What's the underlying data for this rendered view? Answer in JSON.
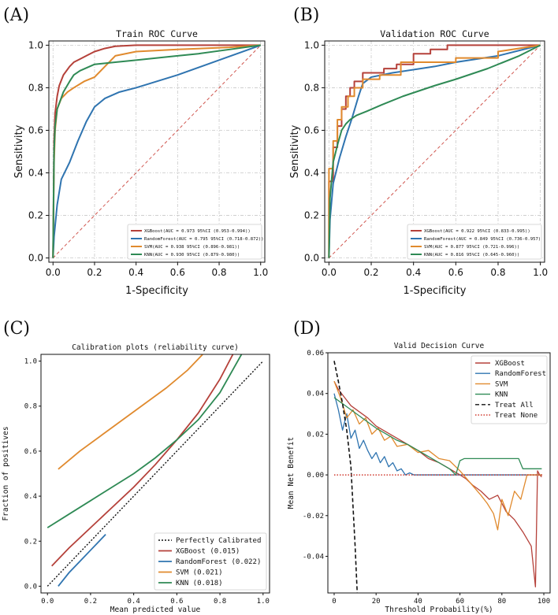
{
  "figure": {
    "panels": [
      {
        "id": "A",
        "letter": "(A)"
      },
      {
        "id": "B",
        "letter": "(B)"
      },
      {
        "id": "C",
        "letter": "(C)"
      },
      {
        "id": "D",
        "letter": "(D)"
      }
    ]
  },
  "colors": {
    "XGBoost": "#b5413a",
    "RandomForest": "#2f74b0",
    "SVM": "#e08a2e",
    "KNN": "#2f8a55",
    "diag": "#d0564f",
    "grid": "#c8c8c8",
    "treat_all": "#111111",
    "treat_none": "#d13a2f"
  },
  "chart_data": [
    {
      "panel": "A",
      "type": "line",
      "title": "Train ROC Curve",
      "xlabel": "1-Specificity",
      "ylabel": "Sensitivity",
      "xlim": [
        -0.02,
        1.02
      ],
      "ylim": [
        -0.02,
        1.02
      ],
      "xticks": [
        "0.0",
        "0.2",
        "0.4",
        "0.6",
        "0.8",
        "1.0"
      ],
      "yticks": [
        "0.0",
        "0.2",
        "0.4",
        "0.6",
        "0.8",
        "1.0"
      ],
      "grid": true,
      "legend_position": "bottom-right",
      "diagonal": true,
      "series": [
        {
          "name": "XGBoost",
          "legend": "XGBoost(AUC = 0.973 95%CI (0.953-0.994))",
          "x": [
            0,
            0.005,
            0.01,
            0.02,
            0.03,
            0.05,
            0.08,
            0.1,
            0.13,
            0.16,
            0.2,
            0.25,
            0.3,
            0.4,
            1.0
          ],
          "y": [
            0,
            0.55,
            0.68,
            0.76,
            0.81,
            0.86,
            0.9,
            0.92,
            0.935,
            0.95,
            0.97,
            0.985,
            0.995,
            1.0,
            1.0
          ]
        },
        {
          "name": "RandomForest",
          "legend": "RandomForest(AUC = 0.795 95%CI (0.718-0.872))",
          "x": [
            0,
            0.005,
            0.02,
            0.04,
            0.08,
            0.12,
            0.16,
            0.2,
            0.25,
            0.32,
            0.4,
            0.6,
            0.8,
            1.0
          ],
          "y": [
            0,
            0.1,
            0.25,
            0.37,
            0.45,
            0.55,
            0.64,
            0.71,
            0.75,
            0.78,
            0.8,
            0.86,
            0.93,
            1.0
          ]
        },
        {
          "name": "SVM",
          "legend": "SVM(AUC = 0.938 95%CI (0.896-0.981))",
          "x": [
            0,
            0.005,
            0.01,
            0.02,
            0.04,
            0.07,
            0.1,
            0.15,
            0.2,
            0.25,
            0.3,
            0.4,
            0.6,
            0.85,
            1.0
          ],
          "y": [
            0,
            0.45,
            0.6,
            0.7,
            0.75,
            0.78,
            0.8,
            0.83,
            0.85,
            0.9,
            0.95,
            0.97,
            0.98,
            0.99,
            1.0
          ]
        },
        {
          "name": "KNN",
          "legend": "KNN(AUC = 0.930 95%CI (0.879-0.980))",
          "x": [
            0,
            0.005,
            0.01,
            0.02,
            0.05,
            0.08,
            0.1,
            0.13,
            0.2,
            0.3,
            0.4,
            0.5,
            0.6,
            0.7,
            0.85,
            1.0
          ],
          "y": [
            0,
            0.5,
            0.62,
            0.7,
            0.78,
            0.83,
            0.86,
            0.88,
            0.91,
            0.92,
            0.93,
            0.94,
            0.95,
            0.96,
            0.98,
            1.0
          ]
        }
      ]
    },
    {
      "panel": "B",
      "type": "line",
      "title": "Validation ROC Curve",
      "xlabel": "1-Specificity",
      "ylabel": "Sensitivity",
      "xlim": [
        -0.02,
        1.02
      ],
      "ylim": [
        -0.02,
        1.02
      ],
      "xticks": [
        "0.0",
        "0.2",
        "0.4",
        "0.6",
        "0.8",
        "1.0"
      ],
      "yticks": [
        "0.0",
        "0.2",
        "0.4",
        "0.6",
        "0.8",
        "1.0"
      ],
      "grid": true,
      "legend_position": "bottom-right",
      "diagonal": true,
      "series": [
        {
          "name": "XGBoost",
          "legend": "XGBoost(AUC = 0.922 95%CI (0.833-0.995))",
          "x": [
            0,
            0,
            0.02,
            0.02,
            0.04,
            0.04,
            0.06,
            0.06,
            0.08,
            0.08,
            0.1,
            0.1,
            0.12,
            0.12,
            0.16,
            0.16,
            0.2,
            0.2,
            0.26,
            0.26,
            0.32,
            0.32,
            0.4,
            0.4,
            0.48,
            0.48,
            0.56,
            0.56,
            1.0
          ],
          "y": [
            0,
            0.36,
            0.36,
            0.52,
            0.52,
            0.62,
            0.62,
            0.7,
            0.7,
            0.76,
            0.76,
            0.8,
            0.8,
            0.83,
            0.83,
            0.87,
            0.87,
            0.87,
            0.87,
            0.89,
            0.89,
            0.91,
            0.91,
            0.96,
            0.96,
            0.98,
            0.98,
            1.0,
            1.0
          ]
        },
        {
          "name": "RandomForest",
          "legend": "RandomForest(AUC = 0.849 95%CI (0.736-0.957)",
          "x": [
            0,
            0.005,
            0.02,
            0.05,
            0.08,
            0.11,
            0.14,
            0.16,
            0.2,
            0.3,
            0.5,
            0.6,
            0.8,
            1.0
          ],
          "y": [
            0,
            0.18,
            0.35,
            0.47,
            0.57,
            0.66,
            0.76,
            0.82,
            0.85,
            0.87,
            0.9,
            0.92,
            0.95,
            1.0
          ]
        },
        {
          "name": "SVM",
          "legend": "SVM(AUC = 0.877 95%CI (0.721-0.996))",
          "x": [
            0,
            0,
            0.02,
            0.02,
            0.04,
            0.04,
            0.06,
            0.06,
            0.09,
            0.09,
            0.12,
            0.12,
            0.16,
            0.16,
            0.24,
            0.24,
            0.34,
            0.34,
            0.6,
            0.6,
            0.8,
            0.8,
            1.0
          ],
          "y": [
            0,
            0.42,
            0.42,
            0.55,
            0.55,
            0.65,
            0.65,
            0.71,
            0.71,
            0.76,
            0.76,
            0.8,
            0.8,
            0.84,
            0.84,
            0.86,
            0.86,
            0.92,
            0.92,
            0.94,
            0.94,
            0.97,
            1.0
          ]
        },
        {
          "name": "KNN",
          "legend": "KNN(AUC = 0.816 95%CI (0.645-0.960))",
          "x": [
            0,
            0.005,
            0.02,
            0.04,
            0.06,
            0.08,
            0.1,
            0.13,
            0.18,
            0.25,
            0.35,
            0.5,
            0.6,
            0.75,
            0.9,
            1.0
          ],
          "y": [
            0,
            0.28,
            0.45,
            0.53,
            0.6,
            0.63,
            0.65,
            0.67,
            0.69,
            0.72,
            0.76,
            0.81,
            0.84,
            0.89,
            0.95,
            1.0
          ]
        }
      ]
    },
    {
      "panel": "C",
      "type": "line",
      "title": "Calibration plots  (reliability curve)",
      "xlabel": "Mean predicted value",
      "ylabel": "Fraction of positives",
      "xlim": [
        -0.03,
        1.03
      ],
      "ylim": [
        -0.03,
        1.03
      ],
      "xticks": [
        "0.0",
        "0.2",
        "0.4",
        "0.6",
        "0.8",
        "1.0"
      ],
      "yticks": [
        "0.0",
        "0.2",
        "0.4",
        "0.6",
        "0.8",
        "1.0"
      ],
      "grid": false,
      "legend_position": "bottom-right",
      "series": [
        {
          "name": "Perfectly Calibrated",
          "legend": "Perfectly Calibrated",
          "style": "dotted",
          "x": [
            0,
            1.0
          ],
          "y": [
            0,
            1.0
          ]
        },
        {
          "name": "XGBoost",
          "legend": "XGBoost (0.015)",
          "x": [
            0.02,
            0.1,
            0.2,
            0.3,
            0.4,
            0.5,
            0.6,
            0.7,
            0.8,
            0.86
          ],
          "y": [
            0.09,
            0.17,
            0.26,
            0.35,
            0.44,
            0.54,
            0.65,
            0.77,
            0.92,
            1.03
          ]
        },
        {
          "name": "RandomForest",
          "legend": "RandomForest (0.022)",
          "x": [
            0.05,
            0.1,
            0.15,
            0.2,
            0.27
          ],
          "y": [
            0.0,
            0.06,
            0.11,
            0.16,
            0.23
          ]
        },
        {
          "name": "SVM",
          "legend": "SVM (0.021)",
          "x": [
            0.05,
            0.15,
            0.25,
            0.35,
            0.45,
            0.55,
            0.65,
            0.72
          ],
          "y": [
            0.52,
            0.6,
            0.67,
            0.74,
            0.81,
            0.88,
            0.96,
            1.03
          ]
        },
        {
          "name": "KNN",
          "legend": "KNN (0.018)",
          "x": [
            0.0,
            0.1,
            0.2,
            0.3,
            0.4,
            0.5,
            0.6,
            0.7,
            0.8,
            0.9
          ],
          "y": [
            0.26,
            0.32,
            0.38,
            0.44,
            0.5,
            0.57,
            0.65,
            0.74,
            0.86,
            1.03
          ]
        }
      ]
    },
    {
      "panel": "D",
      "type": "line",
      "title": "Valid Decision Curve",
      "xlabel": "Threshold Probability(%)",
      "ylabel": "Mean Net Benefit",
      "xlim": [
        -3,
        103
      ],
      "ylim": [
        -0.058,
        0.06
      ],
      "xticks": [
        "0",
        "20",
        "40",
        "60",
        "80",
        "100"
      ],
      "xtick_values": [
        0,
        20,
        40,
        60,
        80,
        100
      ],
      "yticks": [
        "0.06",
        "0.04",
        "0.02",
        "0.00",
        "-0.02",
        "-0.04"
      ],
      "ytick_values": [
        0.06,
        0.04,
        0.02,
        0.0,
        -0.02,
        -0.04
      ],
      "grid": false,
      "legend_position": "top-right",
      "series": [
        {
          "name": "XGBoost",
          "legend": "XGBoost",
          "x": [
            0,
            2,
            5,
            8,
            12,
            16,
            20,
            25,
            30,
            35,
            40,
            45,
            50,
            55,
            60,
            63,
            66,
            70,
            74,
            78,
            82,
            86,
            90,
            94,
            96,
            97,
            98,
            99
          ],
          "y": [
            0.046,
            0.042,
            0.038,
            0.034,
            0.031,
            0.028,
            0.024,
            0.021,
            0.018,
            0.015,
            0.012,
            0.008,
            0.006,
            0.003,
            0.0,
            -0.002,
            -0.005,
            -0.008,
            -0.012,
            -0.01,
            -0.018,
            -0.022,
            -0.028,
            -0.035,
            -0.055,
            0.002,
            0.0,
            -0.001
          ]
        },
        {
          "name": "RandomForest",
          "legend": "RandomForest",
          "x": [
            0,
            2,
            4,
            6,
            8,
            10,
            12,
            14,
            16,
            18,
            20,
            22,
            24,
            26,
            28,
            30,
            32,
            34,
            36,
            38,
            40,
            50,
            60,
            80,
            99
          ],
          "y": [
            0.04,
            0.032,
            0.022,
            0.03,
            0.018,
            0.022,
            0.013,
            0.017,
            0.012,
            0.008,
            0.011,
            0.006,
            0.009,
            0.004,
            0.006,
            0.002,
            0.003,
            0.0,
            0.001,
            0.0,
            0.0,
            0.0,
            0.0,
            0.0,
            0.0
          ]
        },
        {
          "name": "SVM",
          "legend": "SVM",
          "x": [
            0,
            3,
            6,
            9,
            12,
            15,
            18,
            21,
            24,
            27,
            30,
            35,
            40,
            45,
            50,
            55,
            60,
            65,
            70,
            73,
            76,
            78,
            80,
            83,
            86,
            89,
            92,
            95,
            99
          ],
          "y": [
            0.046,
            0.038,
            0.028,
            0.032,
            0.025,
            0.028,
            0.02,
            0.023,
            0.017,
            0.019,
            0.014,
            0.015,
            0.011,
            0.012,
            0.008,
            0.007,
            0.002,
            -0.004,
            -0.01,
            -0.014,
            -0.019,
            -0.027,
            -0.012,
            -0.02,
            -0.008,
            -0.012,
            0.0,
            0.0,
            0.0
          ]
        },
        {
          "name": "KNN",
          "legend": "KNN",
          "x": [
            0,
            4,
            8,
            12,
            16,
            20,
            25,
            30,
            35,
            40,
            45,
            50,
            55,
            58,
            60,
            62,
            70,
            80,
            88,
            90,
            99
          ],
          "y": [
            0.038,
            0.035,
            0.032,
            0.029,
            0.026,
            0.023,
            0.02,
            0.017,
            0.015,
            0.012,
            0.009,
            0.006,
            0.003,
            0.0,
            0.007,
            0.008,
            0.008,
            0.008,
            0.008,
            0.003,
            0.003
          ]
        },
        {
          "name": "Treat All",
          "legend": "Treat All",
          "style": "dashed",
          "x": [
            0,
            2,
            4,
            6,
            8,
            10,
            11
          ],
          "y": [
            0.056,
            0.046,
            0.035,
            0.022,
            0.004,
            -0.035,
            -0.058
          ]
        },
        {
          "name": "Treat None",
          "legend": "Treat None",
          "style": "dotted",
          "x": [
            0,
            100
          ],
          "y": [
            0.0,
            0.0
          ]
        }
      ]
    }
  ]
}
